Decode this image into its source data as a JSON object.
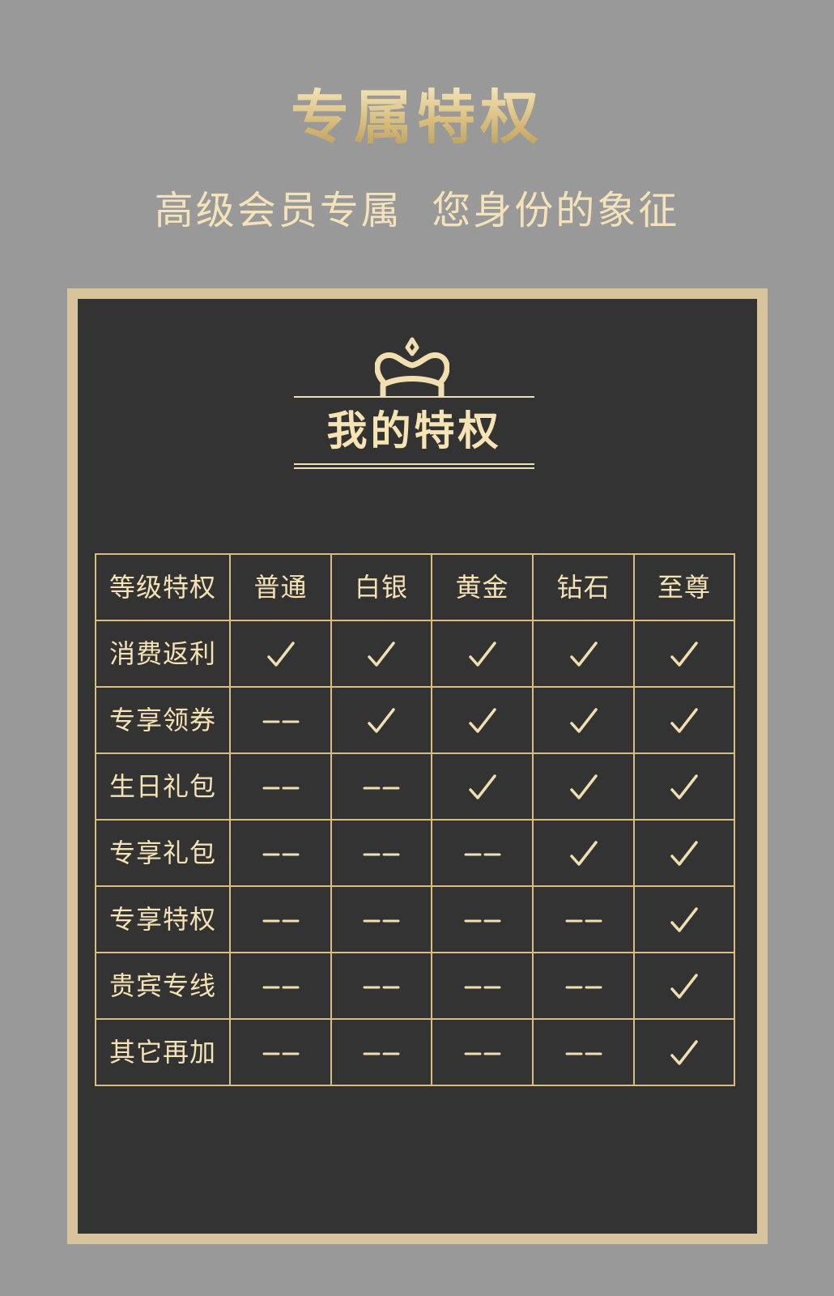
{
  "header": {
    "title": "专属特权",
    "subtitle": "高级会员专属  您身份的象征"
  },
  "panel": {
    "title": "我的特权",
    "icon": "crown-icon"
  },
  "colors": {
    "page_bg": "#999999",
    "frame": "#d8c49c",
    "panel_bg": "#333333",
    "gold": "#d9bd7e",
    "text_gold": "#f5e3b5"
  },
  "table": {
    "columns": [
      "等级特权",
      "普通",
      "白银",
      "黄金",
      "钻石",
      "至尊"
    ],
    "rows": [
      {
        "label": "消费返利",
        "values": [
          "check",
          "check",
          "check",
          "check",
          "check"
        ]
      },
      {
        "label": "专享领券",
        "values": [
          "dash",
          "check",
          "check",
          "check",
          "check"
        ]
      },
      {
        "label": "生日礼包",
        "values": [
          "dash",
          "dash",
          "check",
          "check",
          "check"
        ]
      },
      {
        "label": "专享礼包",
        "values": [
          "dash",
          "dash",
          "dash",
          "check",
          "check"
        ]
      },
      {
        "label": "专享特权",
        "values": [
          "dash",
          "dash",
          "dash",
          "dash",
          "check"
        ]
      },
      {
        "label": "贵宾专线",
        "values": [
          "dash",
          "dash",
          "dash",
          "dash",
          "check"
        ]
      },
      {
        "label": "其它再加",
        "values": [
          "dash",
          "dash",
          "dash",
          "dash",
          "check"
        ]
      }
    ]
  }
}
